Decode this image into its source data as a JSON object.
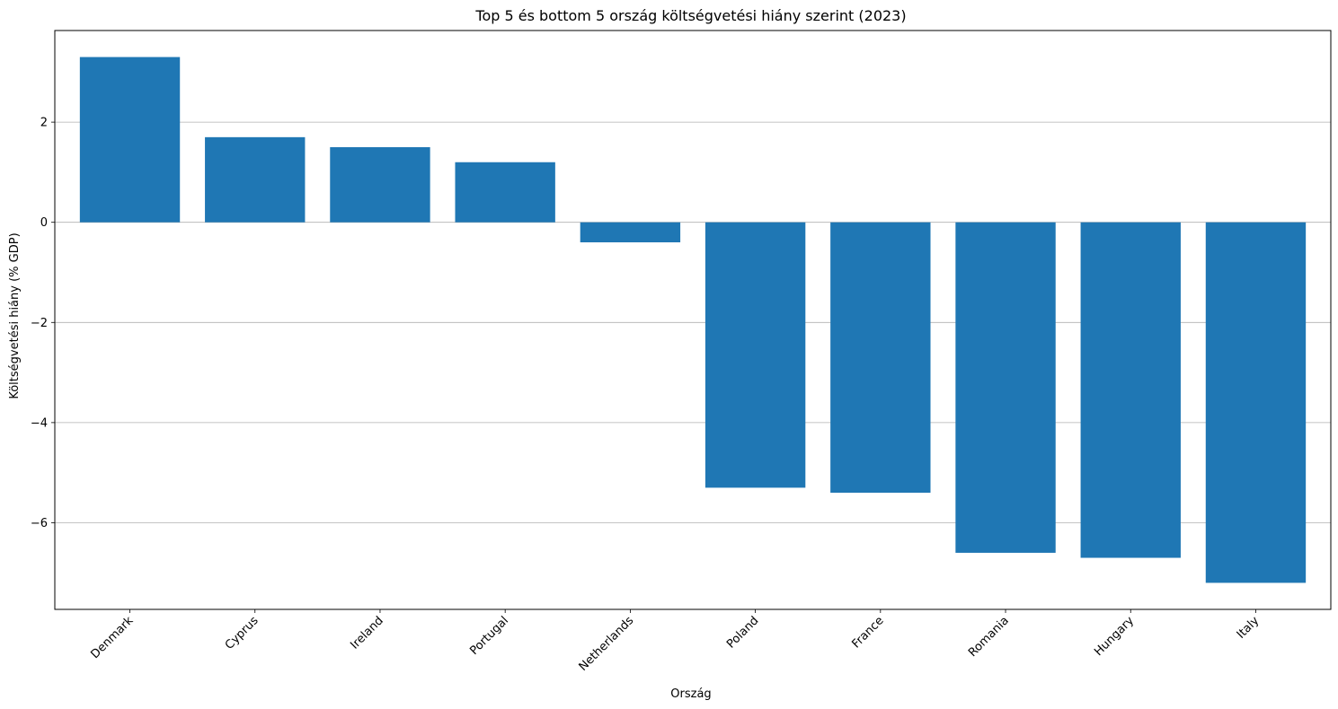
{
  "chart_data": {
    "type": "bar",
    "title": "Top 5 és bottom 5 ország költségvetési hiány szerint (2023)",
    "xlabel": "Ország",
    "ylabel": "Költségvetési hiány (% GDP)",
    "categories": [
      "Denmark",
      "Cyprus",
      "Ireland",
      "Portugal",
      "Netherlands",
      "Poland",
      "France",
      "Romania",
      "Hungary",
      "Italy"
    ],
    "values": [
      3.3,
      1.7,
      1.5,
      1.2,
      -0.4,
      -5.3,
      -5.4,
      -6.6,
      -6.7,
      -7.2
    ],
    "ylim": [
      -7.73,
      3.83
    ],
    "yticks": [
      2,
      0,
      -2,
      -4,
      -6
    ],
    "ytick_labels": [
      "2",
      "0",
      "−2",
      "−4",
      "−6"
    ],
    "grid": "y",
    "bar_color": "#1f77b4",
    "grid_color": "#b0b0b0"
  }
}
